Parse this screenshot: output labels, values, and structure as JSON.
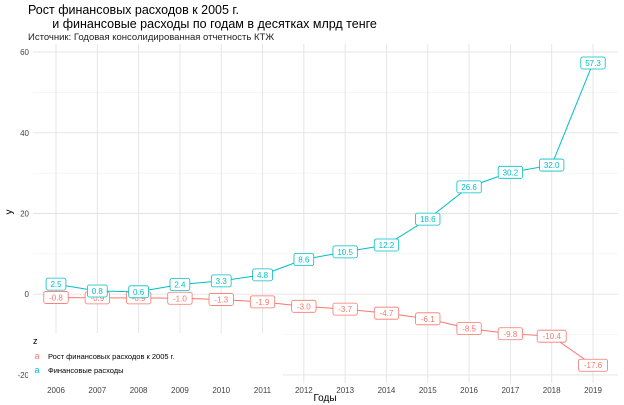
{
  "chart_data": {
    "type": "line",
    "title": "Рост финансовых расходов к 2005 г.\n       и финансовые расходы по годам в десятках млрд тенге",
    "subtitle": "Источник: Годовая консолидированная отчетность КТЖ",
    "xlabel": "Годы",
    "ylabel": "y",
    "categories": [
      "2006",
      "2007",
      "2008",
      "2009",
      "2010",
      "2011",
      "2012",
      "2013",
      "2014",
      "2015",
      "2016",
      "2017",
      "2018",
      "2019"
    ],
    "ylim": [
      -22,
      62
    ],
    "yticks": [
      "-20",
      "0",
      "20",
      "40",
      "60"
    ],
    "grid": true,
    "legend": {
      "title": "z",
      "position": "bottom-left"
    },
    "series": [
      {
        "name": "Рост финансовых расходов к 2005 г.",
        "color": "#f8766d",
        "legend_key": "a",
        "values": [
          -0.8,
          -0.9,
          -0.9,
          -1.0,
          -1.3,
          -1.9,
          -3.0,
          -3.7,
          -4.7,
          -6.1,
          -8.5,
          -9.8,
          -10.4,
          -17.6
        ],
        "labels": [
          "-0.8",
          "-0.9",
          "-0.9",
          "-1.0",
          "-1.3",
          "-1.9",
          "-3.0",
          "-3.7",
          "-4.7",
          "-6.1",
          "-8.5",
          "-9.8",
          "-10.4",
          "-17.6"
        ]
      },
      {
        "name": "Финансовые расходы",
        "color": "#00bfc4",
        "legend_key": "a",
        "values": [
          2.5,
          0.8,
          0.6,
          2.4,
          3.3,
          4.8,
          8.6,
          10.5,
          12.2,
          18.6,
          26.6,
          30.2,
          32.0,
          57.3
        ],
        "labels": [
          "2.5",
          "0.8",
          "0.6",
          "2.4",
          "3.3",
          "4.8",
          "8.6",
          "10.5",
          "12.2",
          "18.6",
          "26.6",
          "30.2",
          "32.0",
          "57.3"
        ]
      }
    ]
  }
}
